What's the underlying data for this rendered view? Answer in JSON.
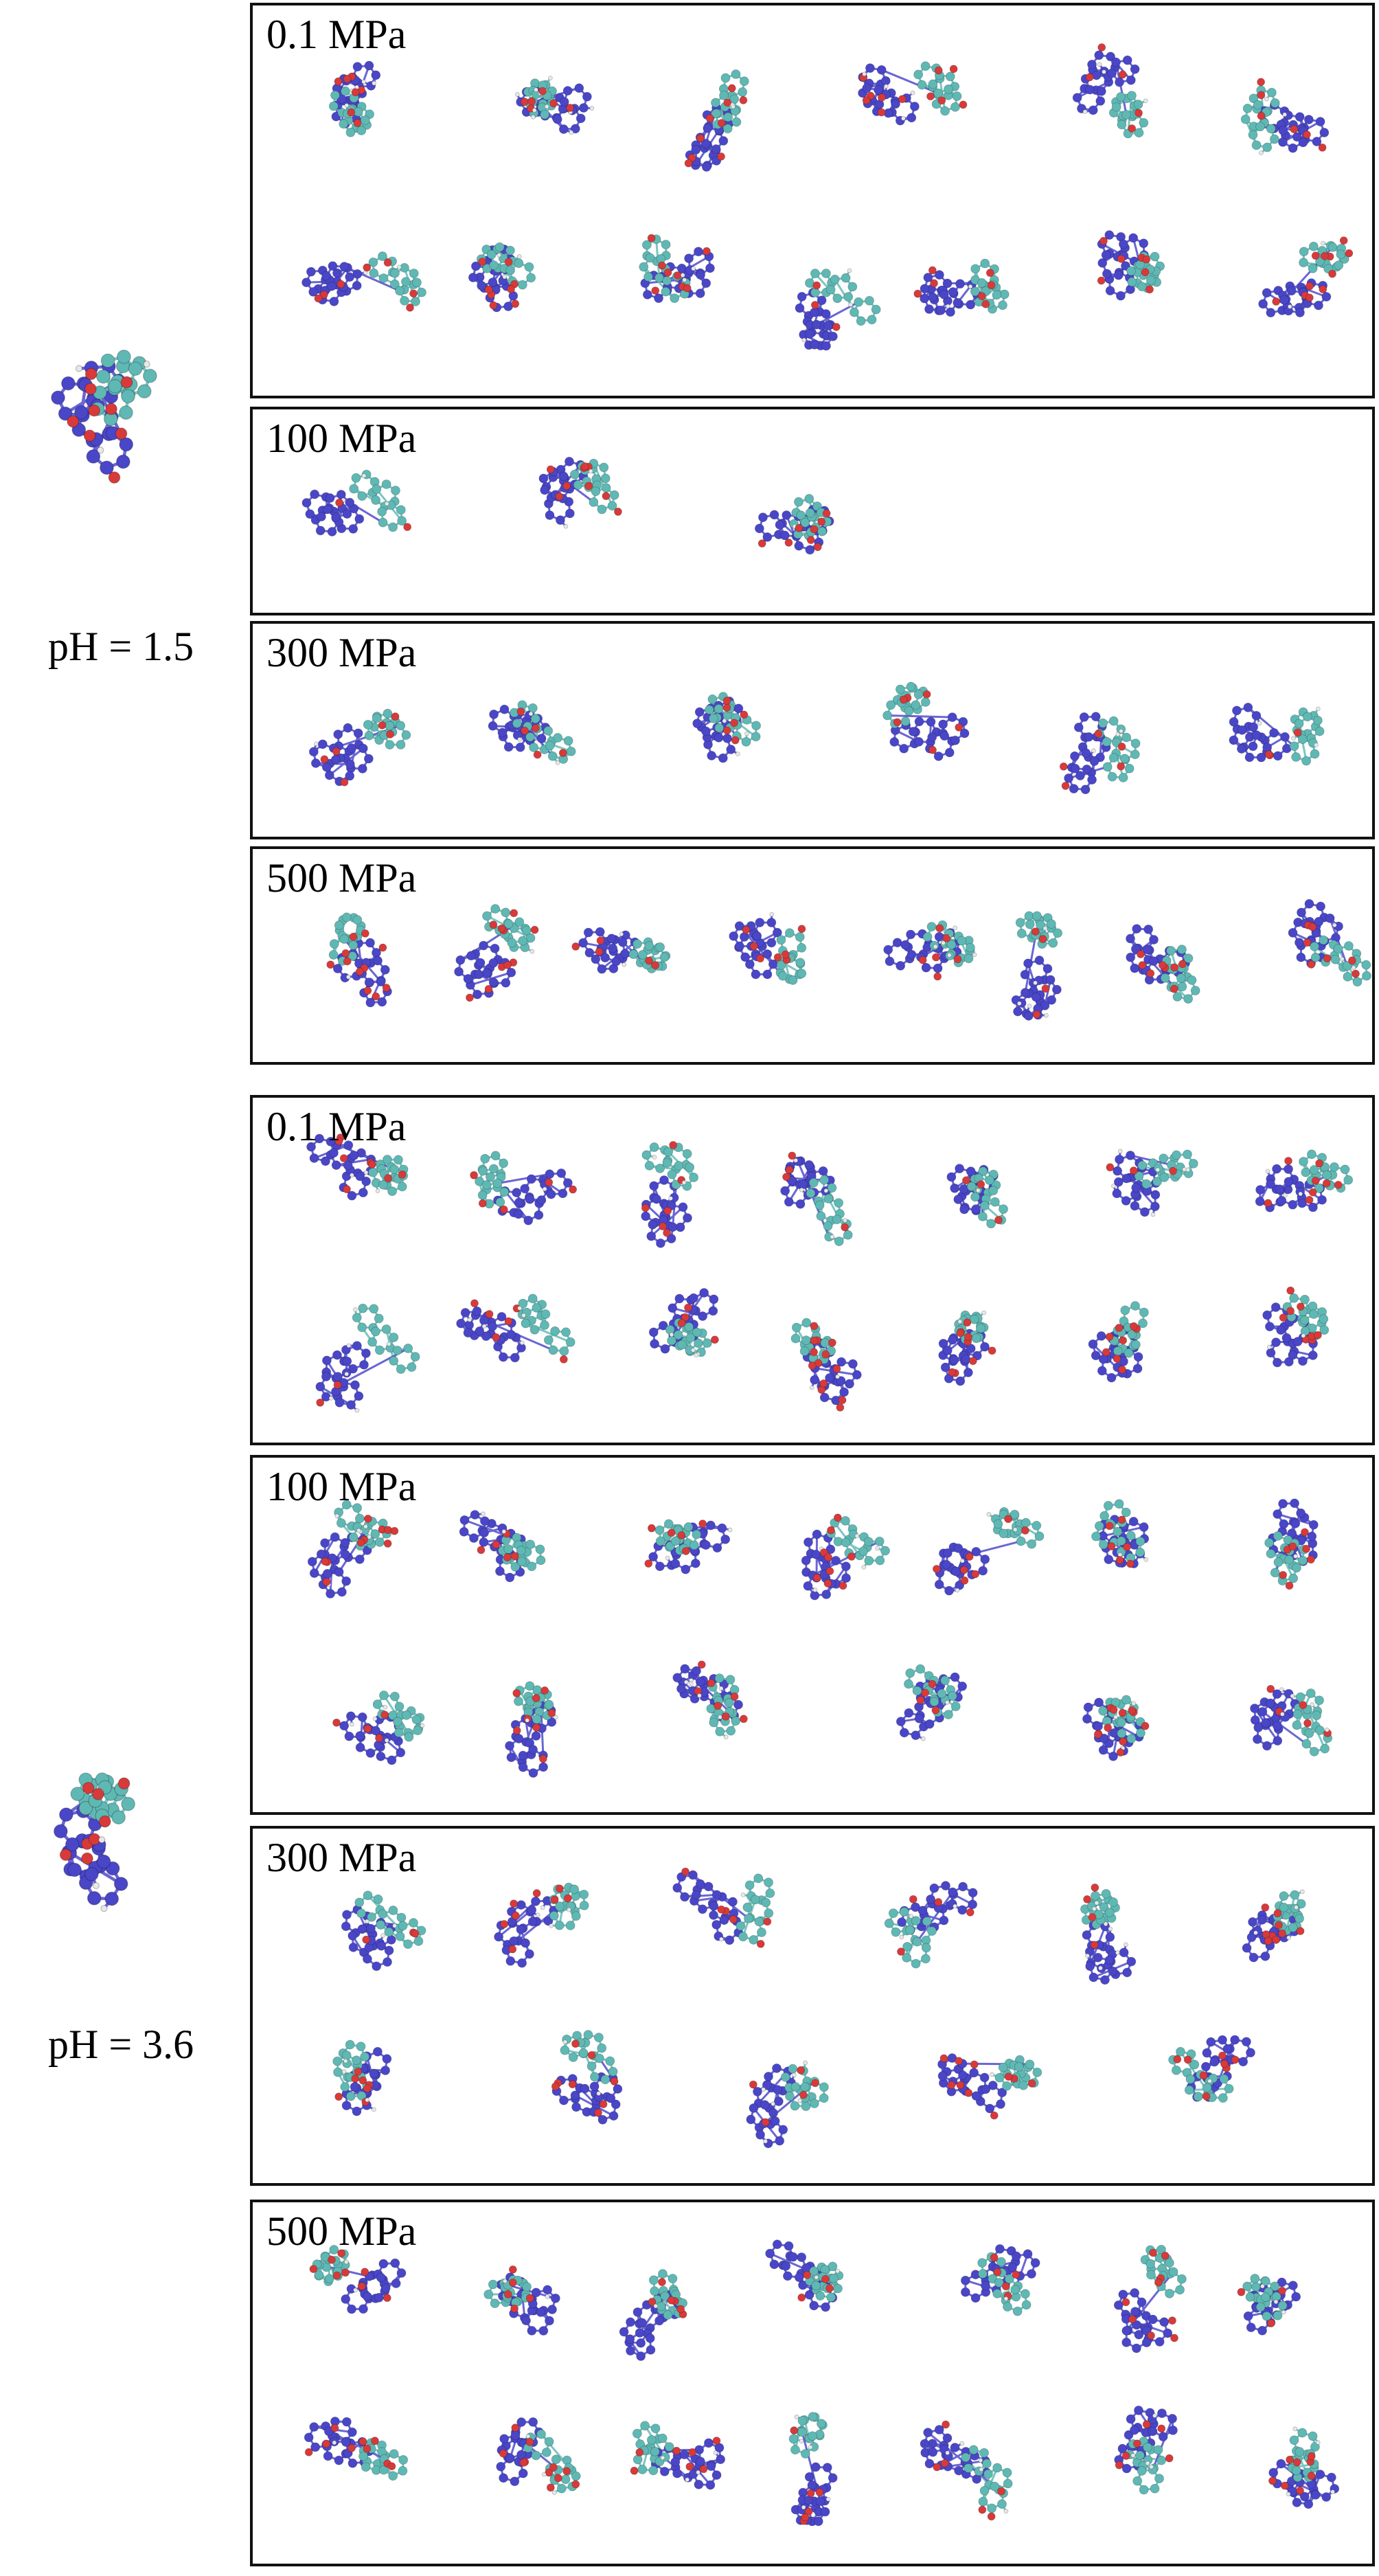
{
  "groups": [
    {
      "ph_label": "pH = 1.5",
      "panels": [
        {
          "pressure": "0.1 MPa",
          "rows": [
            6,
            7
          ]
        },
        {
          "pressure": "100 MPa",
          "rows": [
            3
          ]
        },
        {
          "pressure": "300 MPa",
          "rows": [
            6
          ]
        },
        {
          "pressure": "500 MPa",
          "rows": [
            8
          ]
        }
      ]
    },
    {
      "ph_label": "pH = 3.6",
      "panels": [
        {
          "pressure": "0.1 MPa",
          "rows": [
            7,
            7
          ]
        },
        {
          "pressure": "100 MPa",
          "rows": [
            7,
            6
          ]
        },
        {
          "pressure": "300 MPa",
          "rows": [
            6,
            5
          ]
        },
        {
          "pressure": "500 MPa",
          "rows": [
            7,
            7
          ]
        }
      ]
    }
  ],
  "colors": {
    "nitrogen": "#4a46c8",
    "carbon": "#5fb8b4",
    "oxygen": "#d83a3a",
    "hydrogen": "#e8e8e8",
    "border": "#111111"
  }
}
